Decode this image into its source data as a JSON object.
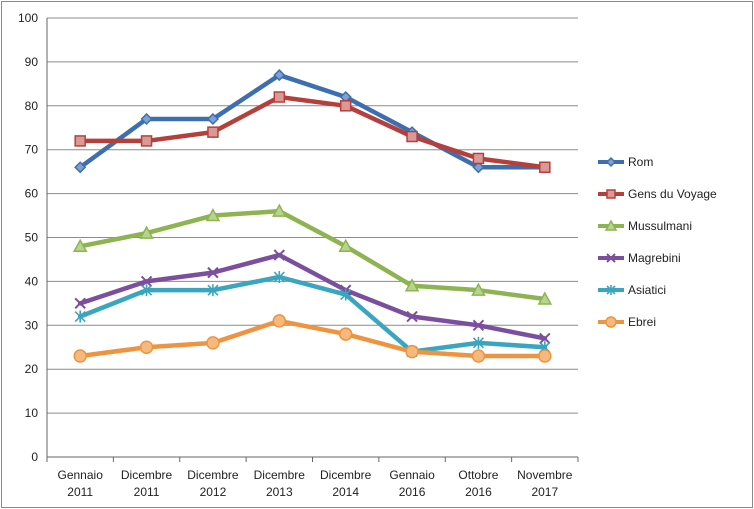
{
  "chart_data": {
    "type": "line",
    "title": "",
    "xlabel": "",
    "ylabel": "",
    "ylim": [
      0,
      100
    ],
    "yticks": [
      0,
      10,
      20,
      30,
      40,
      50,
      60,
      70,
      80,
      90,
      100
    ],
    "grid": true,
    "legend": "right",
    "categories": [
      [
        "Gennaio",
        "2011"
      ],
      [
        "Dicembre",
        "2011"
      ],
      [
        "Dicembre",
        "2012"
      ],
      [
        "Dicembre",
        "2013"
      ],
      [
        "Dicembre",
        "2014"
      ],
      [
        "Gennaio",
        "2016"
      ],
      [
        "Ottobre",
        "2016"
      ],
      [
        "Novembre",
        "2017"
      ]
    ],
    "series": [
      {
        "name": "Rom",
        "color": "#3d6fb0",
        "marker": "diamond",
        "values": [
          66,
          77,
          77,
          87,
          82,
          74,
          66,
          66
        ]
      },
      {
        "name": "Gens du Voyage",
        "color": "#b5403b",
        "marker": "square",
        "values": [
          72,
          72,
          74,
          82,
          80,
          73,
          68,
          66
        ]
      },
      {
        "name": "Mussulmani",
        "color": "#8db450",
        "marker": "triangle",
        "values": [
          48,
          51,
          55,
          56,
          48,
          39,
          38,
          36
        ]
      },
      {
        "name": "Magrebini",
        "color": "#7b4f9e",
        "marker": "x",
        "values": [
          35,
          40,
          42,
          46,
          38,
          32,
          30,
          27
        ]
      },
      {
        "name": "Asiatici",
        "color": "#3aa5bf",
        "marker": "star",
        "values": [
          32,
          38,
          38,
          41,
          37,
          24,
          26,
          25
        ]
      },
      {
        "name": "Ebrei",
        "color": "#ee9440",
        "marker": "circle",
        "values": [
          23,
          25,
          26,
          31,
          28,
          24,
          23,
          23
        ]
      }
    ]
  }
}
